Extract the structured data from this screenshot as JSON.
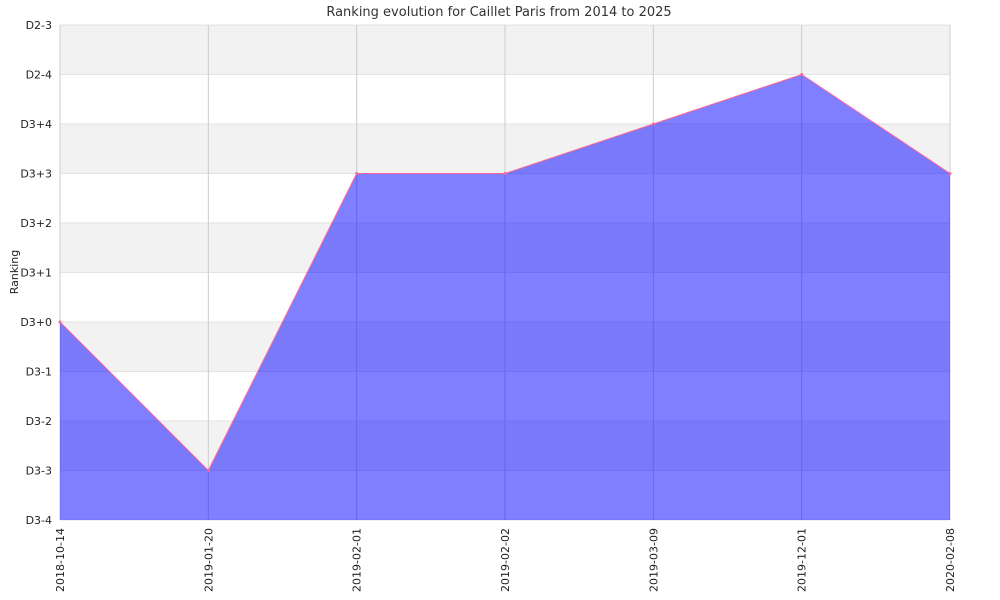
{
  "chart_data": {
    "type": "area",
    "title": "Ranking evolution for Caillet Paris from 2014 to 2025",
    "xlabel": "",
    "ylabel": "Ranking",
    "categories": [
      "2018-10-14",
      "2019-01-20",
      "2019-02-01",
      "2019-02-02",
      "2019-03-09",
      "2019-12-01",
      "2020-02-08"
    ],
    "y_ticks": [
      "D3-4",
      "D3-3",
      "D3-2",
      "D3-1",
      "D3+0",
      "D3+1",
      "D3+2",
      "D3+3",
      "D3+4",
      "D2-4",
      "D2-3"
    ],
    "series": [
      {
        "values": [
          "D3+0",
          "D3-3",
          "D3+3",
          "D3+3",
          "D3+4",
          "D2-4",
          "D3+3"
        ]
      }
    ],
    "ylim": [
      "D3-4",
      "D2-3"
    ],
    "grid": true,
    "legend": "none",
    "colors": {
      "fill": "#0000ff",
      "line": "#ff6699",
      "band_alt": "#f2f2f2",
      "grid": "#cccccc"
    }
  }
}
